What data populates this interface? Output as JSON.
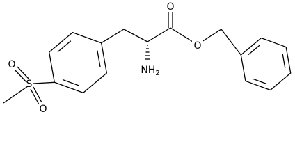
{
  "atoms": {
    "carbonyl_o": "O",
    "ester_o": "O",
    "amine": {
      "main": "NH",
      "sub": "2"
    },
    "sulfur": "S",
    "sulfonyl_o_top": "O",
    "sulfonyl_o_bottom": "O"
  }
}
